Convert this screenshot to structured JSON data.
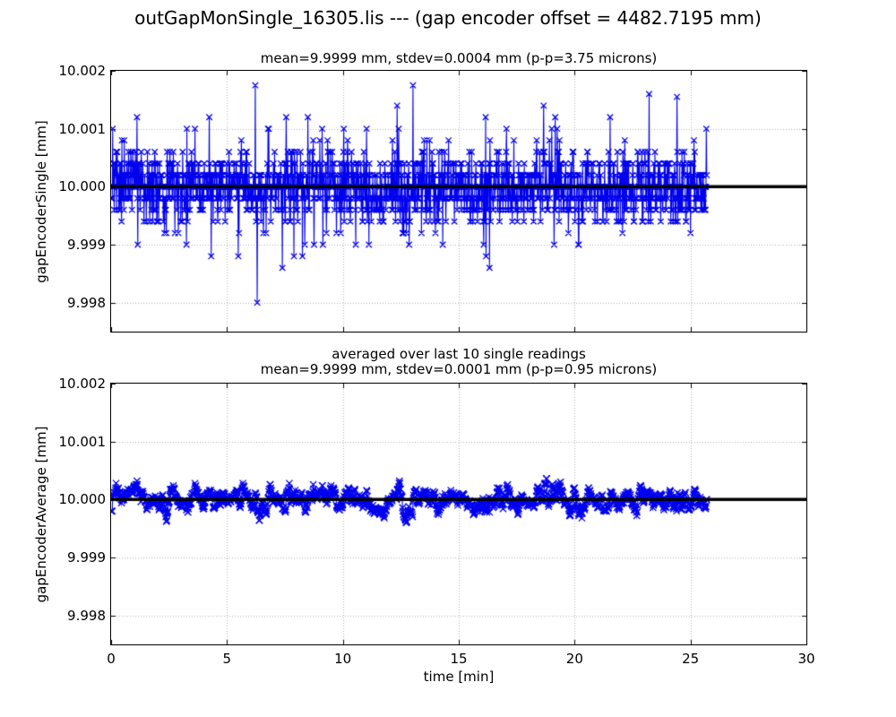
{
  "figure": {
    "title": "outGapMonSingle_16305.lis --- (gap encoder offset = 4482.7195 mm)",
    "background_color": "#ffffff",
    "data_color": "#0000ee",
    "reference_line_color": "#000000",
    "grid_color": "#b4b4b4"
  },
  "xlabel": "time [min]",
  "chart_data": [
    {
      "type": "line",
      "name": "single-readings",
      "title": "mean=9.9999 mm, stdev=0.0004 mm (p-p=3.75 microns)",
      "ylabel": "gapEncoderSingle [mm]",
      "marker": "x",
      "line_style": "solid",
      "grid": true,
      "xlim": [
        0,
        30
      ],
      "ylim": [
        9.9975,
        10.002
      ],
      "xticks": [
        0,
        5,
        10,
        15,
        20,
        25,
        30
      ],
      "xtick_labels": [],
      "yticks": [
        10.002,
        10.001,
        10.0,
        9.999,
        9.998
      ],
      "ytick_labels": [
        "10.002",
        "10.001",
        "10.000",
        "9.999",
        "9.998"
      ],
      "reference_line": {
        "y": 10.0,
        "x_span": [
          0,
          30
        ],
        "linewidth": 3.5
      },
      "series": {
        "name": "gapEncoderSingle",
        "x_start": 0,
        "x_end": 25.7,
        "n_points": 1542,
        "mean": 9.9999,
        "stdev": 0.0004,
        "peak_to_peak_microns": 3.75,
        "min": 9.998,
        "max": 10.00175,
        "quantization_mm": 0.0002,
        "extreme_points": [
          {
            "t": 6.22,
            "v": 10.00175
          },
          {
            "t": 6.3,
            "v": 9.998
          },
          {
            "t": 13.02,
            "v": 10.00175
          },
          {
            "t": 23.22,
            "v": 10.0016
          }
        ]
      }
    },
    {
      "type": "line",
      "name": "averaged-readings",
      "title_line1": "averaged over last 10 single readings",
      "title_line2": "mean=9.9999 mm, stdev=0.0001 mm (p-p=0.95 microns)",
      "ylabel": "gapEncoderAverage [mm]",
      "marker": "x",
      "line_style": "solid",
      "grid": true,
      "xlim": [
        0,
        30
      ],
      "ylim": [
        9.9975,
        10.002
      ],
      "xticks": [
        0,
        5,
        10,
        15,
        20,
        25,
        30
      ],
      "xtick_labels": [
        "0",
        "5",
        "10",
        "15",
        "20",
        "25",
        "30"
      ],
      "yticks": [
        10.002,
        10.001,
        10.0,
        9.999,
        9.998
      ],
      "ytick_labels": [
        "10.002",
        "10.001",
        "10.000",
        "9.999",
        "9.998"
      ],
      "reference_line": {
        "y": 10.0,
        "x_span": [
          0,
          30
        ],
        "linewidth": 3.5
      },
      "series": {
        "name": "gapEncoderAverage",
        "derived_from": "gapEncoderSingle",
        "rolling_window": 10,
        "x_start": 0,
        "x_end": 25.7,
        "n_points": 1542,
        "mean": 9.9999,
        "stdev": 0.0001,
        "peak_to_peak_microns": 0.95,
        "min": 9.99945,
        "max": 10.0004
      }
    }
  ]
}
